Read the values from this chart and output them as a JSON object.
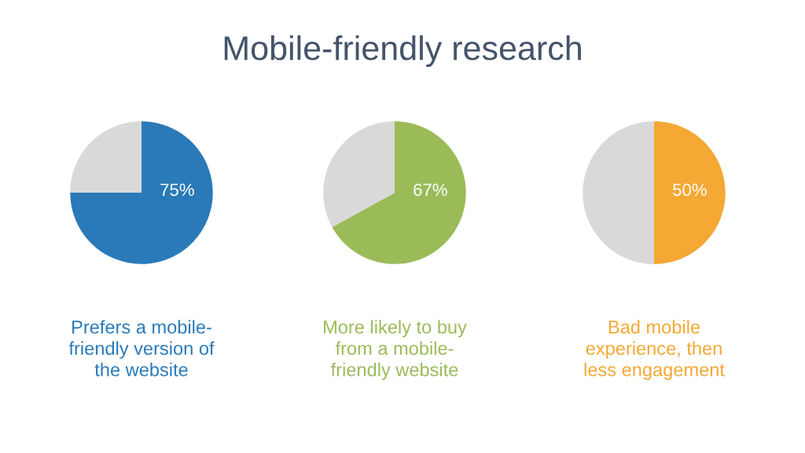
{
  "chart_data": [
    {
      "type": "pie",
      "categories": [
        null,
        null
      ],
      "values": [
        75,
        25
      ],
      "colors": [
        "#2a7ab9",
        "#d9d9d9"
      ],
      "value_labels": [
        "75%",
        null
      ],
      "xlabel": "Prefers a mobile-\nfriendly version of\nthe website"
    },
    {
      "type": "pie",
      "title": "Mobile-friendly research",
      "categories": [
        null,
        null
      ],
      "values": [
        67,
        33
      ],
      "colors": [
        "#9bbb59",
        "#d9d9d9"
      ],
      "value_labels": [
        "67%",
        null
      ],
      "xlabel": "More likely to buy\nfrom a mobile-\nfriendly website"
    },
    {
      "type": "pie",
      "categories": [
        null,
        null
      ],
      "values": [
        50,
        50
      ],
      "colors": [
        "#f5a833",
        "#d9d9d9"
      ],
      "value_labels": [
        "50%",
        null
      ],
      "xlabel": "Bad mobile\nexperience, then\nless engagement"
    }
  ]
}
